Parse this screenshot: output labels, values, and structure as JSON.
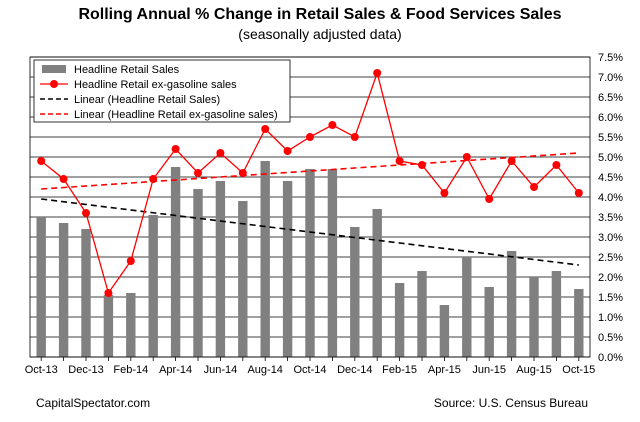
{
  "chart_data": {
    "type": "bar",
    "title": "Rolling Annual % Change in Retail Sales & Food Services Sales",
    "subtitle": "(seasonally adjusted data)",
    "x": [
      "Oct-13",
      "Nov-13",
      "Dec-13",
      "Jan-14",
      "Feb-14",
      "Mar-14",
      "Apr-14",
      "May-14",
      "Jun-14",
      "Jul-14",
      "Aug-14",
      "Sep-14",
      "Oct-14",
      "Nov-14",
      "Dec-14",
      "Jan-15",
      "Feb-15",
      "Mar-15",
      "Apr-15",
      "May-15",
      "Jun-15",
      "Jul-15",
      "Aug-15",
      "Sep-15",
      "Oct-15"
    ],
    "x_tick_labels": [
      "Oct-13",
      "Dec-13",
      "Feb-14",
      "Apr-14",
      "Jun-14",
      "Aug-14",
      "Oct-14",
      "Dec-14",
      "Feb-15",
      "Apr-15",
      "Jun-15",
      "Aug-15",
      "Oct-15"
    ],
    "series": [
      {
        "name": "Headline Retail Sales",
        "kind": "bar",
        "color": "#808080",
        "values": [
          3.5,
          3.35,
          3.2,
          1.55,
          1.6,
          3.55,
          4.75,
          4.2,
          4.4,
          3.9,
          4.9,
          4.4,
          4.7,
          4.7,
          3.25,
          3.7,
          1.85,
          2.15,
          1.3,
          2.5,
          1.75,
          2.65,
          2.0,
          2.15,
          1.7
        ]
      },
      {
        "name": "Headline Retail ex-gasoline sales",
        "kind": "line-marker",
        "color": "#ff0000",
        "values": [
          4.9,
          4.45,
          3.6,
          1.6,
          2.4,
          4.45,
          5.2,
          4.6,
          5.1,
          4.6,
          5.7,
          5.15,
          5.5,
          5.8,
          5.5,
          7.1,
          4.9,
          4.8,
          4.1,
          5.0,
          3.95,
          4.9,
          4.25,
          4.8,
          4.1
        ]
      },
      {
        "name": "Linear (Headline Retail Sales)",
        "kind": "trend",
        "color": "#000000",
        "start": 3.95,
        "end": 2.3
      },
      {
        "name": "Linear (Headline Retail ex-gasoline sales)",
        "kind": "trend",
        "color": "#ff0000",
        "start": 4.2,
        "end": 5.1
      }
    ],
    "ylim": [
      0,
      7.5
    ],
    "y_ticks": [
      "0.0%",
      "0.5%",
      "1.0%",
      "1.5%",
      "2.0%",
      "2.5%",
      "3.0%",
      "3.5%",
      "4.0%",
      "4.5%",
      "5.0%",
      "5.5%",
      "6.0%",
      "6.5%",
      "7.0%",
      "7.5%"
    ],
    "legend_position": "top-left",
    "grid": true
  },
  "footer": {
    "left": "CapitalSpectator.com",
    "right": "Source:  U.S. Census Bureau"
  }
}
